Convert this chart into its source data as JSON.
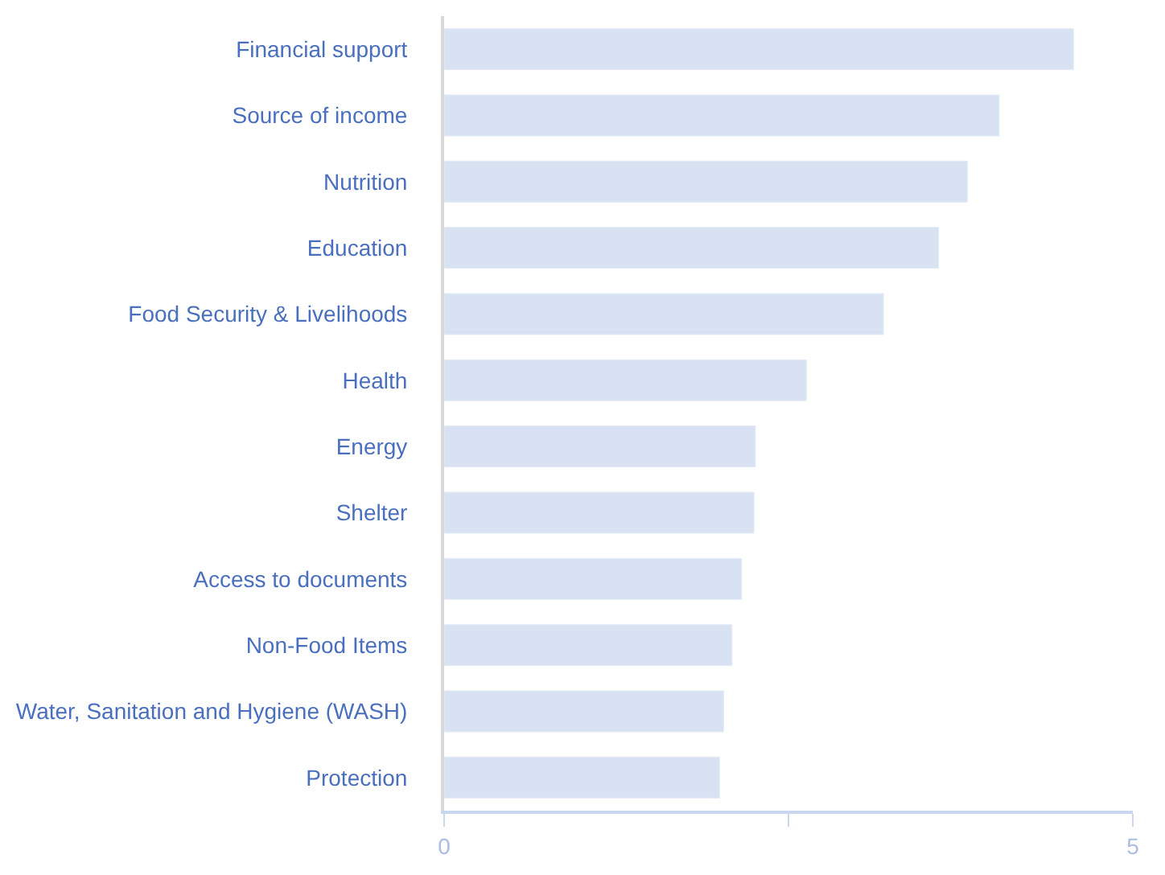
{
  "chart_data": {
    "type": "bar",
    "orientation": "horizontal",
    "categories": [
      "Financial support",
      "Source of income",
      "Nutrition",
      "Education",
      "Food Security & Livelihoods",
      "Health",
      "Energy",
      "Shelter",
      "Access to documents",
      "Non-Food Items",
      "Water, Sanitation and Hygiene (WASH)",
      "Protection"
    ],
    "values": [
      4.57,
      4.03,
      3.8,
      3.59,
      3.19,
      2.63,
      2.26,
      2.25,
      2.16,
      2.09,
      2.03,
      2.0
    ],
    "color": "#d9e2f3",
    "xlim": [
      0,
      5
    ],
    "xticks": [
      0,
      {
        "value": 2.5,
        "label": null
      },
      5
    ]
  }
}
